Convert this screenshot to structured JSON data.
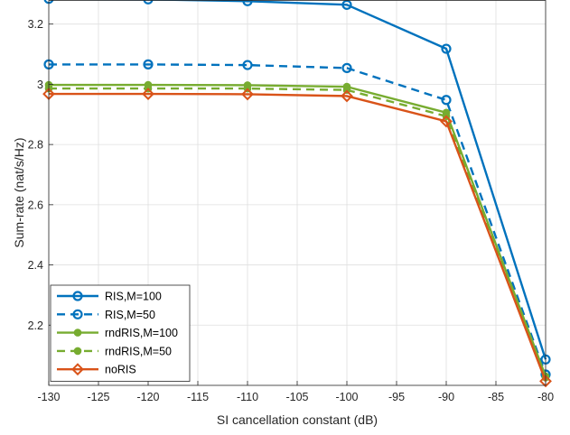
{
  "chart_data": {
    "type": "line",
    "xlabel": "SI cancellation constant (dB)",
    "ylabel": "Sum-rate (nat/s/Hz)",
    "xlim": [
      -130,
      -80
    ],
    "ylim": [
      2.0,
      3.28
    ],
    "xticks": [
      "-130",
      "-125",
      "-120",
      "-115",
      "-110",
      "-105",
      "-100",
      "-95",
      "-90",
      "-85",
      "-80"
    ],
    "yticks": [
      "2.2",
      "2.4",
      "2.6",
      "2.8",
      "3",
      "3.2"
    ],
    "grid": true,
    "legend_position": "bottom-left",
    "x": [
      -130,
      -120,
      -110,
      -100,
      -90,
      -80
    ],
    "series": [
      {
        "name": "RIS,M=100",
        "values": [
          3.284,
          3.282,
          3.276,
          3.264,
          3.118,
          2.086
        ],
        "color": "#0072BD",
        "dash": "solid",
        "marker": "circle"
      },
      {
        "name": "RIS,M=50",
        "values": [
          3.066,
          3.066,
          3.064,
          3.054,
          2.948,
          2.036
        ],
        "color": "#0072BD",
        "dash": "dashed",
        "marker": "circle"
      },
      {
        "name": "rndRIS,M=100",
        "values": [
          2.998,
          2.998,
          2.997,
          2.992,
          2.906,
          2.03
        ],
        "color": "#77AC30",
        "dash": "solid",
        "marker": "dot"
      },
      {
        "name": "rndRIS,M=50",
        "values": [
          2.986,
          2.986,
          2.986,
          2.981,
          2.894,
          2.026
        ],
        "color": "#77AC30",
        "dash": "dashed",
        "marker": "dot"
      },
      {
        "name": "noRIS",
        "values": [
          2.968,
          2.968,
          2.967,
          2.961,
          2.877,
          2.014
        ],
        "color": "#D95319",
        "dash": "solid",
        "marker": "diamond"
      }
    ]
  }
}
